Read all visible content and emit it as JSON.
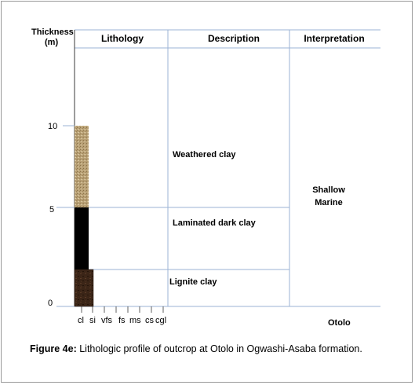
{
  "header": {
    "thickness_label_line1": "Thickness",
    "thickness_label_line2": "(m)",
    "col_lithology": "Lithology",
    "col_description": "Description",
    "col_interpretation": "Interpretation"
  },
  "axis": {
    "ticks": [
      "10",
      "5",
      "0"
    ]
  },
  "layers": [
    {
      "description": "Weathered clay",
      "top_m": 10,
      "bottom_m": 5,
      "color": "#b39a6b"
    },
    {
      "description": "Laminated dark clay",
      "top_m": 5,
      "bottom_m": 1.7,
      "color": "#000000"
    },
    {
      "description": "Lignite clay",
      "top_m": 1.7,
      "bottom_m": -0.2,
      "color": "#3a2416"
    }
  ],
  "interpretation": {
    "line1": "Shallow",
    "line2": "Marine"
  },
  "grain_sizes": [
    "cl",
    "si",
    "vfs",
    "fs",
    "ms",
    "cs",
    "cgl"
  ],
  "location_label": "Otolo",
  "caption": {
    "label": "Figure 4e:",
    "text": " Lithologic profile of outcrop at Otolo in Ogwashi-Asaba formation."
  },
  "colors": {
    "line_blue": "#9bb3d6",
    "axis": "#3a3a3a"
  }
}
